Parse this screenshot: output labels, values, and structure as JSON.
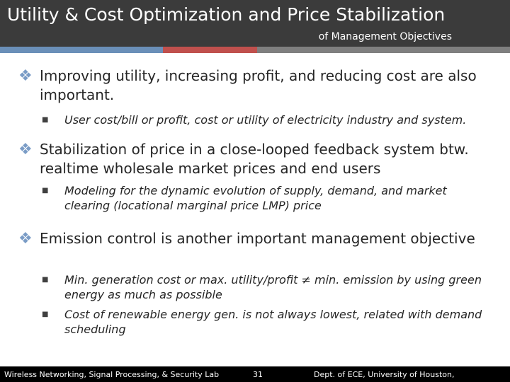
{
  "header": {
    "title": "Utility & Cost Optimization and Price Stabilization",
    "subtitle": "of Management Objectives"
  },
  "bullets": [
    {
      "text": "Improving utility, increasing profit, and reducing cost are also important.",
      "subs": [
        "User cost/bill or profit, cost or utility of electricity industry and system."
      ]
    },
    {
      "text": "Stabilization of price in a close-looped feedback system btw. realtime wholesale market prices and end users",
      "subs": [
        "Modeling for the dynamic evolution of supply, demand, and market clearing (locational marginal price LMP) price"
      ]
    },
    {
      "text": "Emission control is another important management objective",
      "subs": [
        "Min. generation cost or max. utility/profit ≠ min. emission by using green energy as much as possible",
        "Cost of renewable energy gen. is not always lowest, related with demand scheduling"
      ]
    }
  ],
  "footer": {
    "lab": "Wireless Networking, Signal Processing, & Security Lab",
    "page": "31",
    "dept": "Dept. of ECE, University of Houston,"
  }
}
